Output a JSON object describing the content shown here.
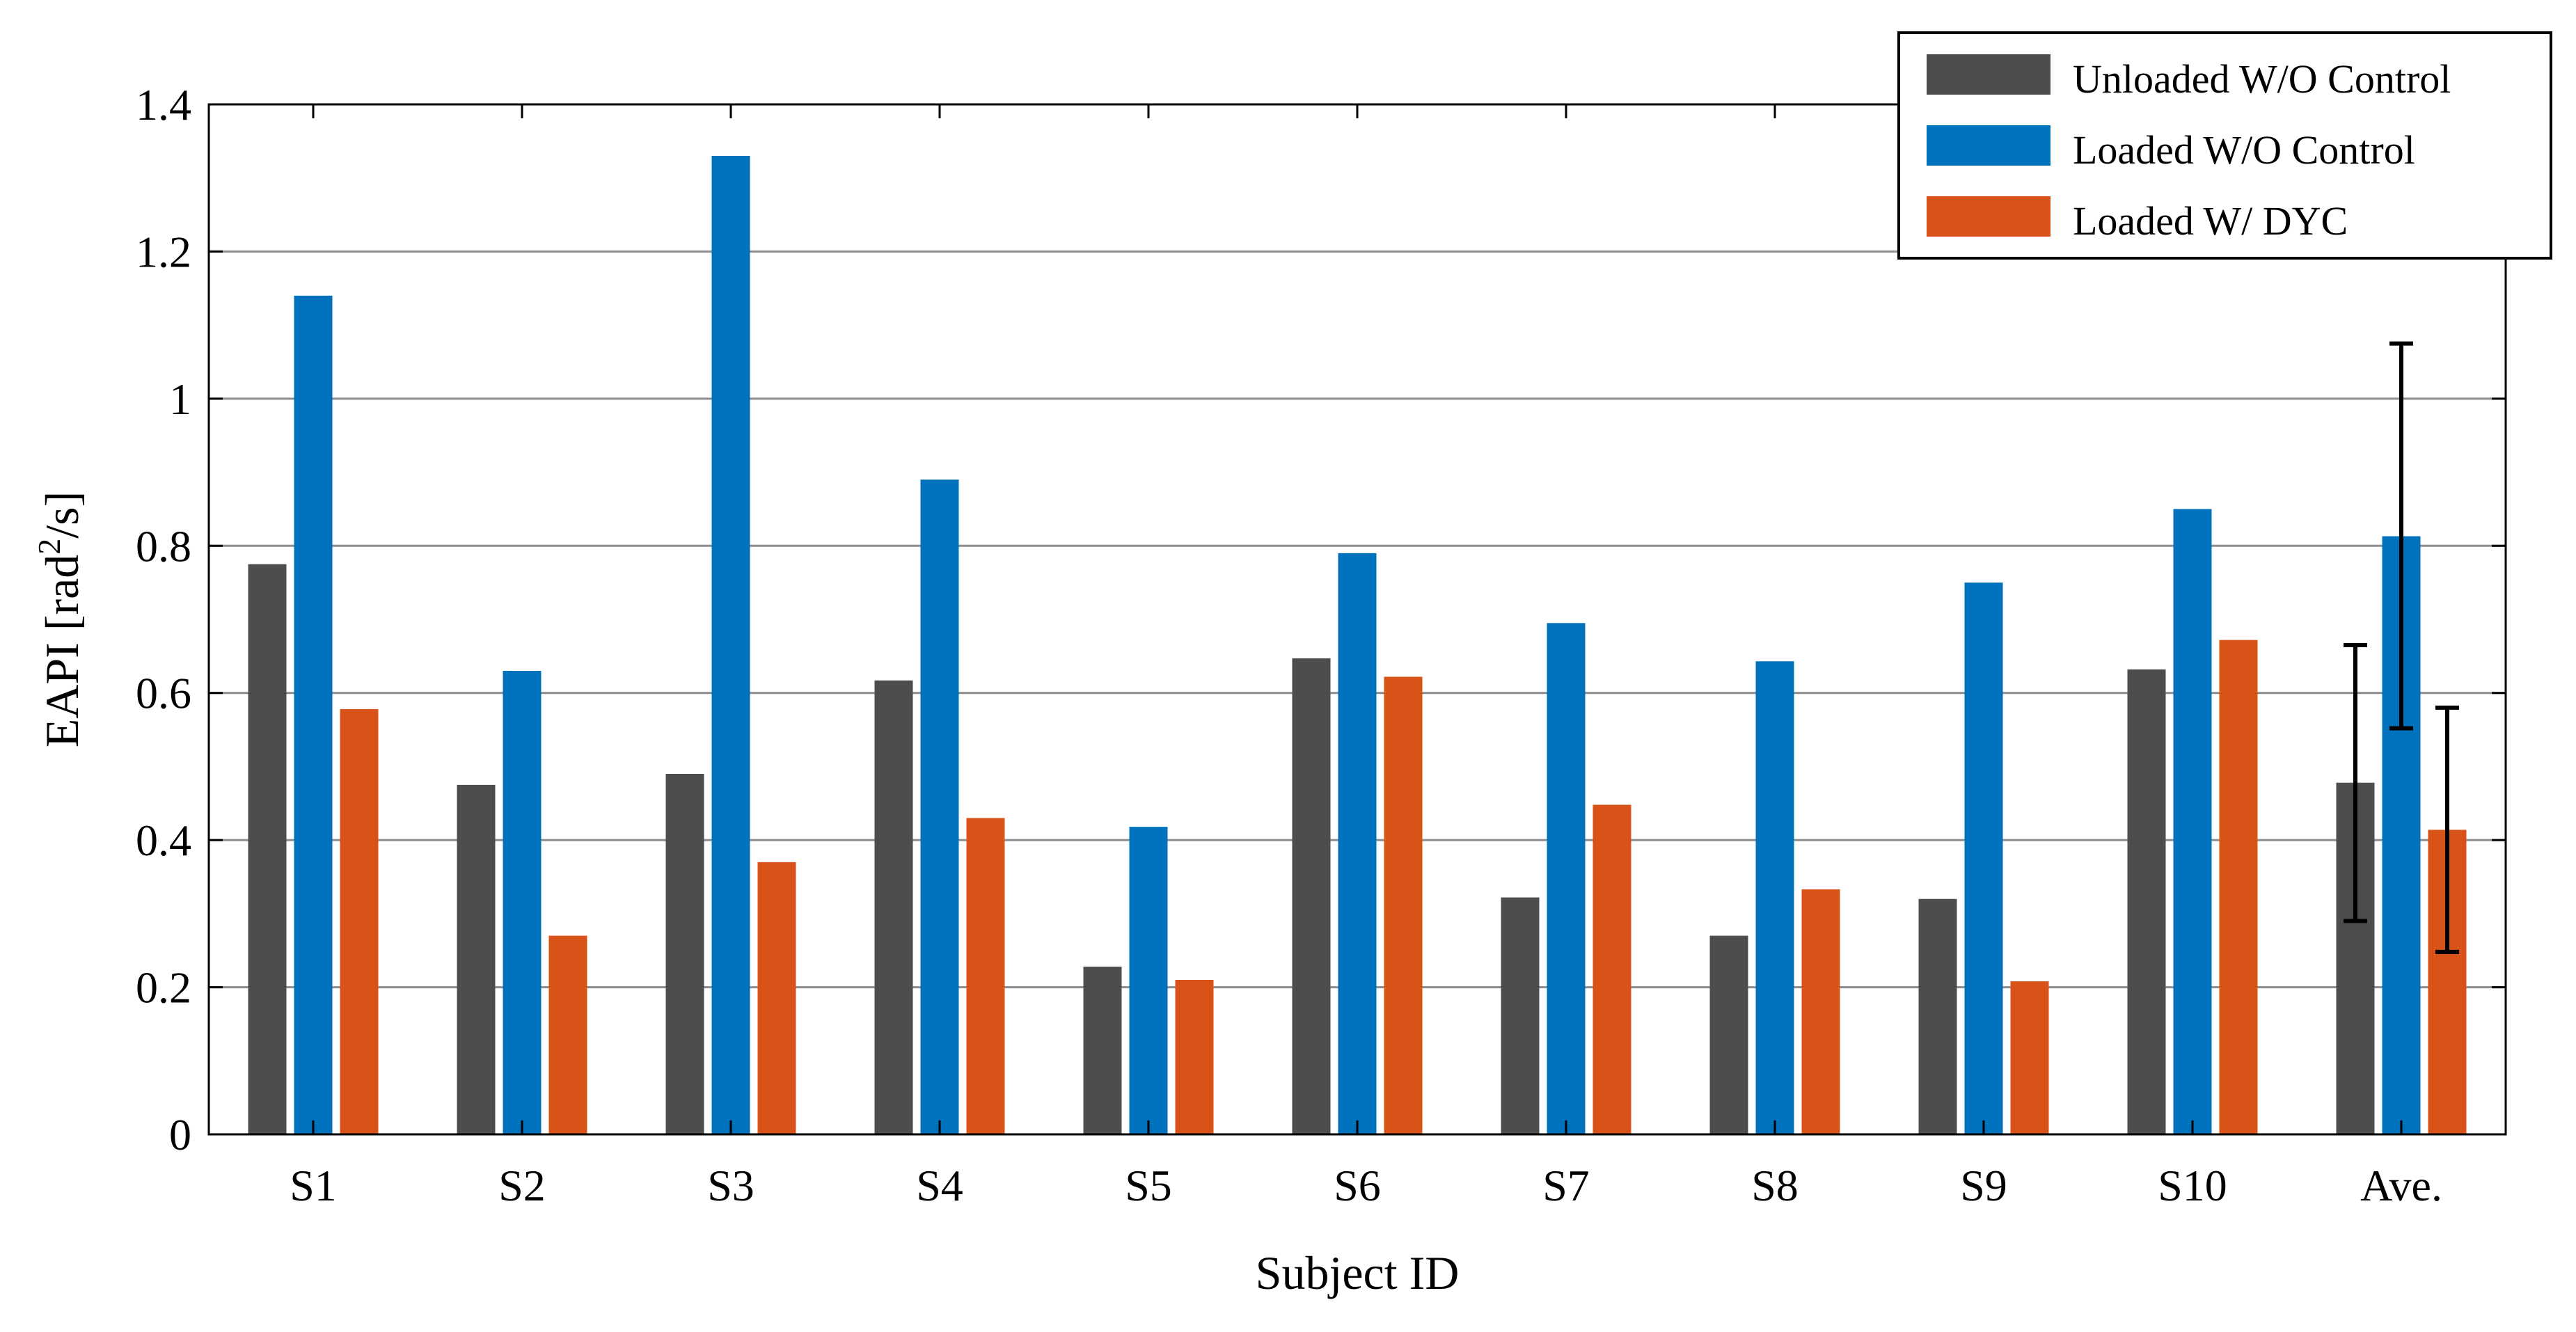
{
  "chart_data": {
    "type": "bar",
    "title": "",
    "xlabel": "Subject ID",
    "ylabel_main": "EAPI [rad",
    "ylabel_sup": "2",
    "ylabel_tail": "/s]",
    "ylim": [
      0,
      1.4
    ],
    "yticks": [
      0,
      0.2,
      0.4,
      0.6,
      0.8,
      1,
      1.2,
      1.4
    ],
    "ytick_labels": [
      "0",
      "0.2",
      "0.4",
      "0.6",
      "0.8",
      "1",
      "1.2",
      "1.4"
    ],
    "grid": "horizontal",
    "legend_position": "top-right",
    "categories": [
      "S1",
      "S2",
      "S3",
      "S4",
      "S5",
      "S6",
      "S7",
      "S8",
      "S9",
      "S10",
      "Ave."
    ],
    "series": [
      {
        "name": "Unloaded W/O Control",
        "color": "#4d4d4d",
        "values": [
          0.775,
          0.475,
          0.49,
          0.617,
          0.228,
          0.647,
          0.322,
          0.27,
          0.32,
          0.632,
          0.478
        ],
        "error_ave": [
          0.29,
          0.665
        ]
      },
      {
        "name": "Loaded W/O Control",
        "color": "#0072bd",
        "values": [
          1.14,
          0.63,
          1.33,
          0.89,
          0.418,
          0.79,
          0.695,
          0.643,
          0.75,
          0.85,
          0.813
        ],
        "error_ave": [
          0.552,
          1.075
        ]
      },
      {
        "name": "Loaded W/ DYC",
        "color": "#d95319",
        "values": [
          0.578,
          0.27,
          0.37,
          0.43,
          0.21,
          0.622,
          0.448,
          0.333,
          0.208,
          0.672,
          0.414
        ],
        "error_ave": [
          0.248,
          0.58
        ]
      }
    ]
  }
}
